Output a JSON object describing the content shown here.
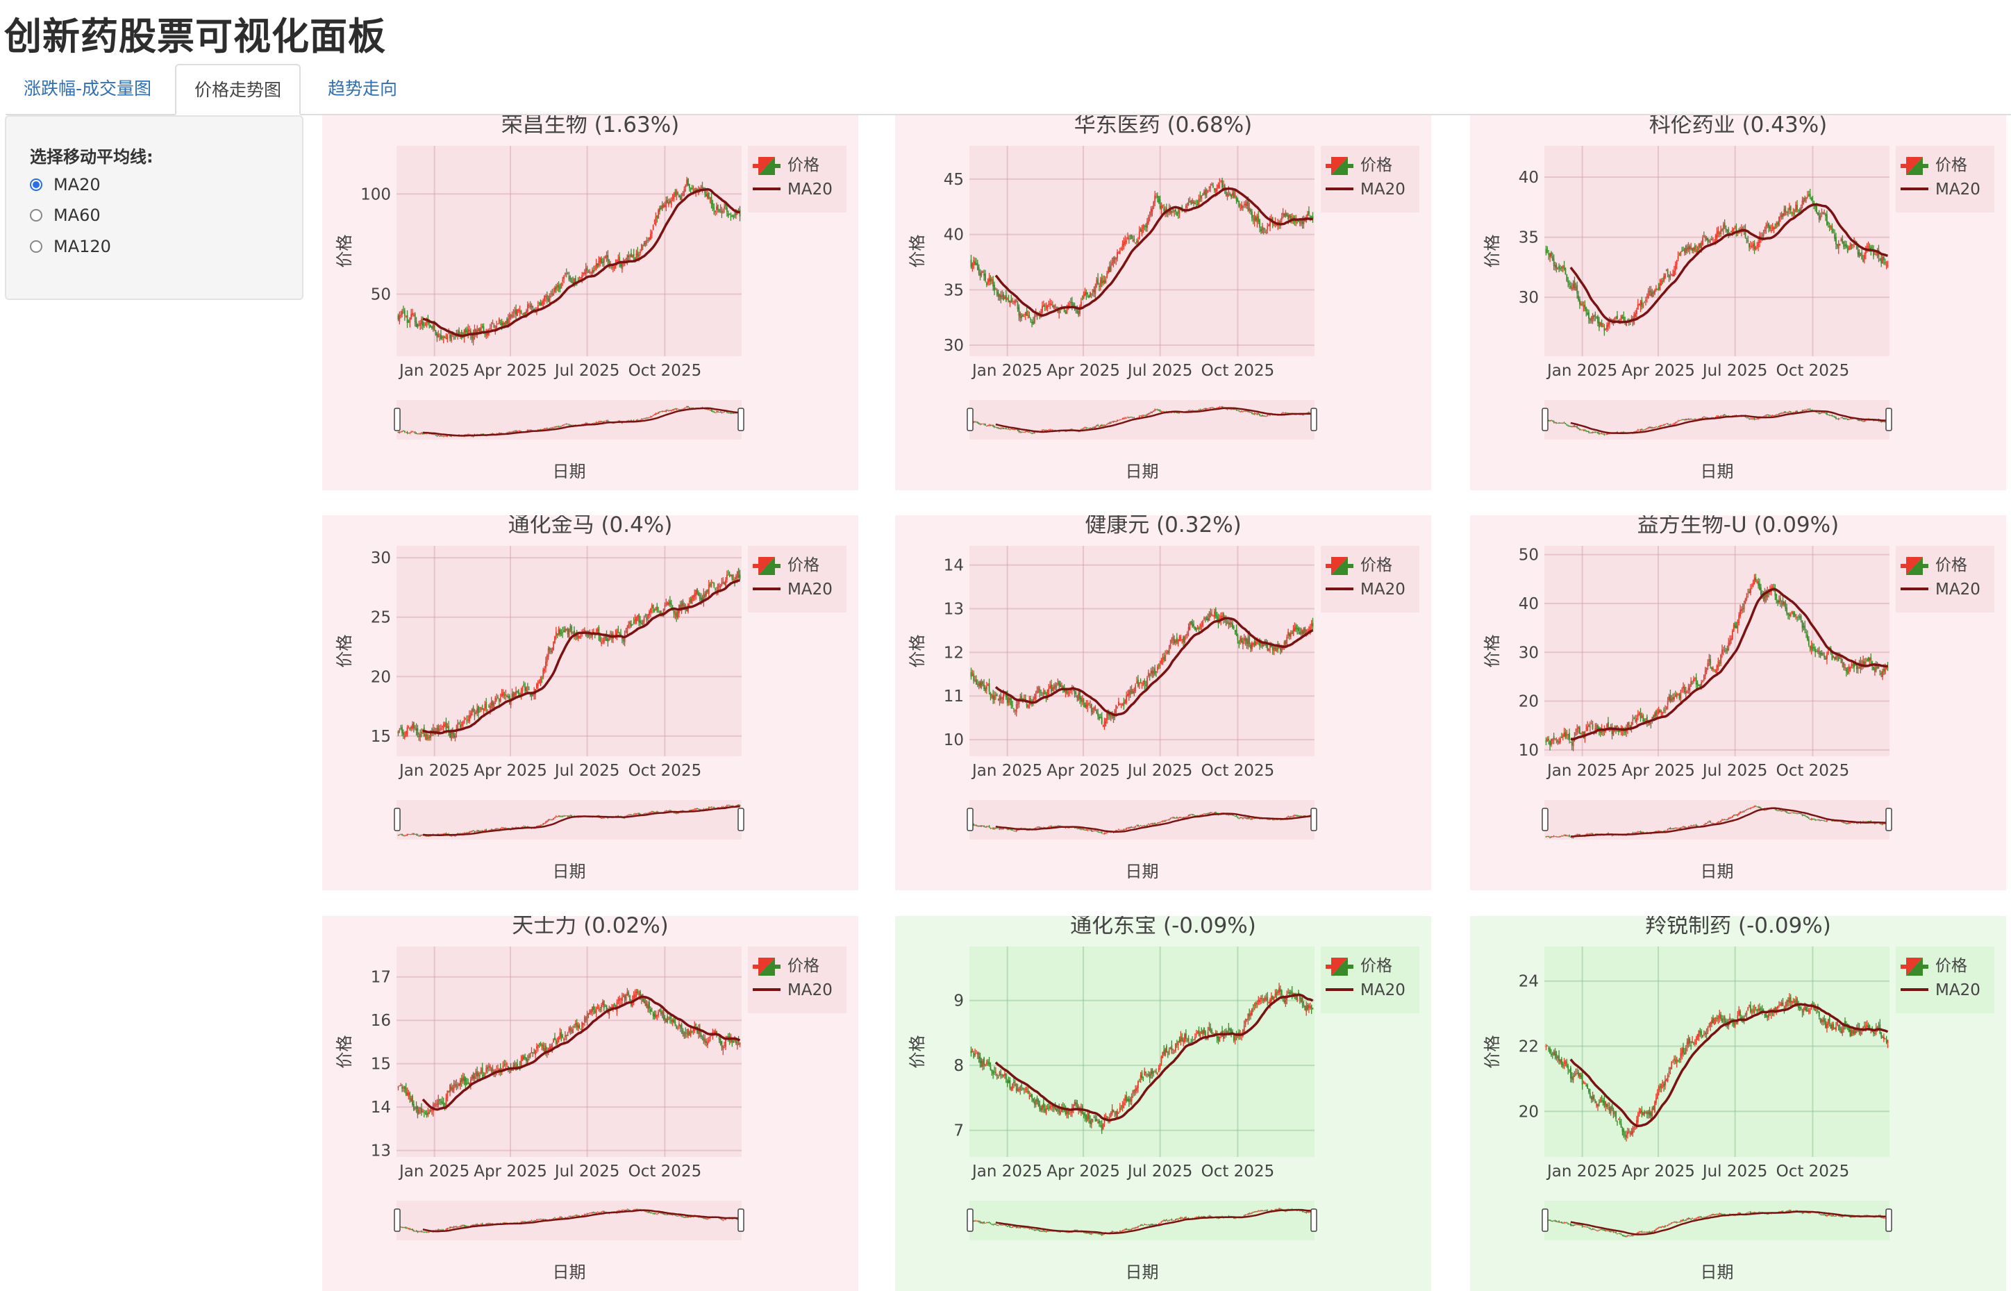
{
  "page_title": "创新药股票可视化面板",
  "tabs": [
    {
      "label": "涨跌幅-成交量图",
      "active": false
    },
    {
      "label": "价格走势图",
      "active": true
    },
    {
      "label": "趋势走向",
      "active": false
    }
  ],
  "sidebar": {
    "label": "选择移动平均线:",
    "options": [
      {
        "label": "MA20",
        "checked": true
      },
      {
        "label": "MA60",
        "checked": false
      },
      {
        "label": "MA120",
        "checked": false
      }
    ]
  },
  "colors": {
    "up_candle": "#e8392b",
    "down_candle": "#3a8a2b",
    "ma_line": "#7a1212",
    "positive_panel_bg": "#fdeff1",
    "positive_plot_bg": "#f9e2e6",
    "negative_panel_bg": "#ebf9e8",
    "negative_plot_bg": "#ddf5d8"
  },
  "chart_data": [
    {
      "type": "candlestick",
      "title": "荣昌生物 (1.63%)",
      "theme": "positive",
      "ylabel": "价格",
      "xlabel": "日期",
      "legend": [
        "价格",
        "MA20"
      ],
      "xlim": [
        "2024-11-17",
        "2025-12-31"
      ],
      "x_ticks": [
        "Jan 2025",
        "Apr 2025",
        "Jul 2025",
        "Oct 2025"
      ],
      "ylim": [
        19,
        124
      ],
      "y_ticks": [
        50,
        100
      ],
      "approx_close": [
        40,
        34,
        29,
        31,
        35,
        44,
        52,
        60,
        66,
        68,
        95,
        104,
        95,
        92
      ]
    },
    {
      "type": "candlestick",
      "title": "华东医药 (0.68%)",
      "theme": "positive",
      "ylabel": "价格",
      "xlabel": "日期",
      "legend": [
        "价格",
        "MA20"
      ],
      "xlim": [
        "2024-11-17",
        "2025-12-31"
      ],
      "x_ticks": [
        "Jan 2025",
        "Apr 2025",
        "Jul 2025",
        "Oct 2025"
      ],
      "ylim": [
        29,
        48
      ],
      "y_ticks": [
        30,
        35,
        40,
        45
      ],
      "approx_close": [
        37.5,
        35,
        32.5,
        33.5,
        33.5,
        36,
        39,
        43,
        41.5,
        44,
        43.5,
        41,
        41.5,
        42
      ]
    },
    {
      "type": "candlestick",
      "title": "科伦药业 (0.43%)",
      "theme": "positive",
      "ylabel": "价格",
      "xlabel": "日期",
      "legend": [
        "价格",
        "MA20"
      ],
      "xlim": [
        "2024-11-17",
        "2025-12-31"
      ],
      "x_ticks": [
        "Jan 2025",
        "Apr 2025",
        "Jul 2025",
        "Oct 2025"
      ],
      "ylim": [
        25.1,
        42.6
      ],
      "y_ticks": [
        30,
        35,
        40
      ],
      "approx_close": [
        34,
        31,
        27.5,
        28,
        30,
        33,
        35,
        36,
        34,
        37,
        38,
        35,
        33.5,
        33.5
      ]
    },
    {
      "type": "candlestick",
      "title": "通化金马 (0.4%)",
      "theme": "positive",
      "ylabel": "价格",
      "xlabel": "日期",
      "legend": [
        "价格",
        "MA20"
      ],
      "xlim": [
        "2024-11-17",
        "2025-12-31"
      ],
      "x_ticks": [
        "Jan 2025",
        "Apr 2025",
        "Jul 2025",
        "Oct 2025"
      ],
      "ylim": [
        13.3,
        31
      ],
      "y_ticks": [
        15,
        20,
        25,
        30
      ],
      "approx_close": [
        15.5,
        15,
        15.3,
        16.5,
        18,
        18.5,
        23.5,
        24,
        22.5,
        24,
        25.5,
        26,
        28,
        28.5
      ]
    },
    {
      "type": "candlestick",
      "title": "健康元 (0.32%)",
      "theme": "positive",
      "ylabel": "价格",
      "xlabel": "日期",
      "legend": [
        "价格",
        "MA20"
      ],
      "xlim": [
        "2024-11-17",
        "2025-12-31"
      ],
      "x_ticks": [
        "Jan 2025",
        "Apr 2025",
        "Jul 2025",
        "Oct 2025"
      ],
      "ylim": [
        9.62,
        14.44
      ],
      "y_ticks": [
        10,
        11,
        12,
        13,
        14
      ],
      "approx_close": [
        11.5,
        11,
        10.8,
        11.2,
        11.1,
        10.5,
        11,
        11.6,
        12.3,
        13,
        12.5,
        12.1,
        12.3,
        12.5
      ]
    },
    {
      "type": "candlestick",
      "title": "益方生物-U (0.09%)",
      "theme": "positive",
      "ylabel": "价格",
      "xlabel": "日期",
      "legend": [
        "价格",
        "MA20"
      ],
      "xlim": [
        "2024-11-17",
        "2025-12-31"
      ],
      "x_ticks": [
        "Jan 2025",
        "Apr 2025",
        "Jul 2025",
        "Oct 2025"
      ],
      "ylim": [
        8.7,
        51.8
      ],
      "y_ticks": [
        10,
        20,
        30,
        40,
        50
      ],
      "approx_close": [
        12,
        13,
        13,
        14,
        17,
        21,
        24,
        33,
        44,
        40,
        33,
        28,
        27,
        27
      ]
    },
    {
      "type": "candlestick",
      "title": "天士力 (0.02%)",
      "theme": "positive",
      "ylabel": "价格",
      "xlabel": "日期",
      "legend": [
        "价格",
        "MA20"
      ],
      "xlim": [
        "2024-11-17",
        "2025-12-31"
      ],
      "x_ticks": [
        "Jan 2025",
        "Apr 2025",
        "Jul 2025",
        "Oct 2025"
      ],
      "ylim": [
        12.85,
        17.7
      ],
      "y_ticks": [
        13,
        14,
        15,
        16,
        17
      ],
      "approx_close": [
        14.5,
        13.8,
        14.4,
        14.8,
        14.9,
        15.3,
        15.5,
        16,
        16.3,
        16.5,
        16,
        15.8,
        15.5,
        15.5
      ]
    },
    {
      "type": "candlestick",
      "title": "通化东宝 (-0.09%)",
      "theme": "negative",
      "ylabel": "价格",
      "xlabel": "日期",
      "legend": [
        "价格",
        "MA20"
      ],
      "xlim": [
        "2024-11-17",
        "2025-12-31"
      ],
      "x_ticks": [
        "Jan 2025",
        "Apr 2025",
        "Jul 2025",
        "Oct 2025"
      ],
      "ylim": [
        6.59,
        9.83
      ],
      "y_ticks": [
        7,
        8,
        9
      ],
      "approx_close": [
        8.2,
        8,
        7.5,
        7.4,
        7.3,
        7.1,
        7.5,
        8,
        8.4,
        8.5,
        8.4,
        8.9,
        9.1,
        8.9
      ]
    },
    {
      "type": "candlestick",
      "title": "羚锐制药 (-0.09%)",
      "theme": "negative",
      "ylabel": "价格",
      "xlabel": "日期",
      "legend": [
        "价格",
        "MA20"
      ],
      "xlim": [
        "2024-11-17",
        "2025-12-31"
      ],
      "x_ticks": [
        "Jan 2025",
        "Apr 2025",
        "Jul 2025",
        "Oct 2025"
      ],
      "ylim": [
        18.6,
        25.06
      ],
      "y_ticks": [
        20,
        22,
        24
      ],
      "approx_close": [
        22,
        21,
        20.5,
        19.5,
        20,
        21.5,
        22.5,
        23,
        23,
        23.3,
        23.2,
        22.5,
        22.6,
        22.3
      ]
    }
  ]
}
